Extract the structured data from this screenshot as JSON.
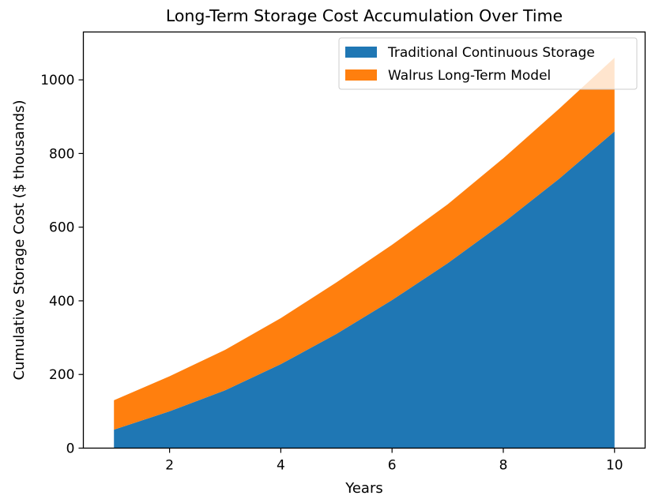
{
  "chart_data": {
    "type": "area",
    "stacked": true,
    "title": "Long-Term Storage Cost Accumulation Over Time",
    "xlabel": "Years",
    "ylabel": "Cumulative Storage Cost ($ thousands)",
    "x": [
      1,
      2,
      3,
      4,
      5,
      6,
      7,
      8,
      9,
      10
    ],
    "xlim": [
      0.45,
      10.55
    ],
    "ylim": [
      0,
      1130
    ],
    "xticks": [
      2,
      4,
      6,
      8,
      10
    ],
    "yticks": [
      0,
      200,
      400,
      600,
      800,
      1000
    ],
    "grid": false,
    "legend_position": "upper right",
    "series": [
      {
        "name": "Traditional Continuous Storage",
        "color": "#1f77b4",
        "values": [
          50,
          100,
          157,
          228,
          310,
          402,
          502,
          612,
          731,
          860
        ]
      },
      {
        "name": "Walrus Long-Term Model",
        "color": "#ff7f0e",
        "values": [
          80,
          95,
          110,
          125,
          140,
          150,
          160,
          175,
          190,
          200
        ]
      }
    ]
  }
}
